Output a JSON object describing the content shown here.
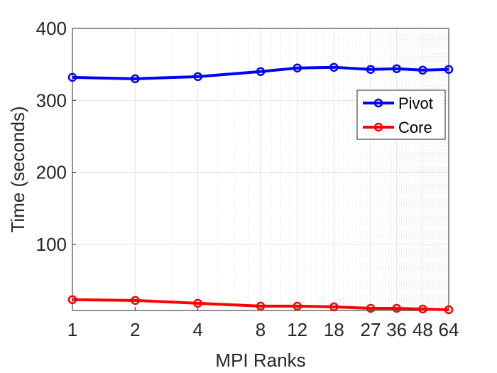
{
  "chart_data": {
    "type": "line",
    "xscale": "log2",
    "x": [
      1,
      2,
      4,
      8,
      12,
      18,
      27,
      36,
      48,
      64
    ],
    "x_tick_labels": [
      "1",
      "2",
      "4",
      "8",
      "12",
      "18",
      "27",
      "36",
      "48",
      "64"
    ],
    "series": [
      {
        "name": "Pivot",
        "color": "#0000ff",
        "values": [
          332,
          330,
          333,
          340,
          345,
          346,
          343,
          344,
          342,
          343
        ]
      },
      {
        "name": "Core",
        "color": "#ff0000",
        "values": [
          23,
          22,
          18,
          14,
          14,
          13,
          11,
          11,
          10,
          9
        ]
      }
    ],
    "xlabel": "MPI Ranks",
    "ylabel": "Time (seconds)",
    "ylim": [
      8,
      400
    ],
    "y_ticks": [
      100,
      200,
      300,
      400
    ],
    "grid": true,
    "legend_position": "right"
  }
}
